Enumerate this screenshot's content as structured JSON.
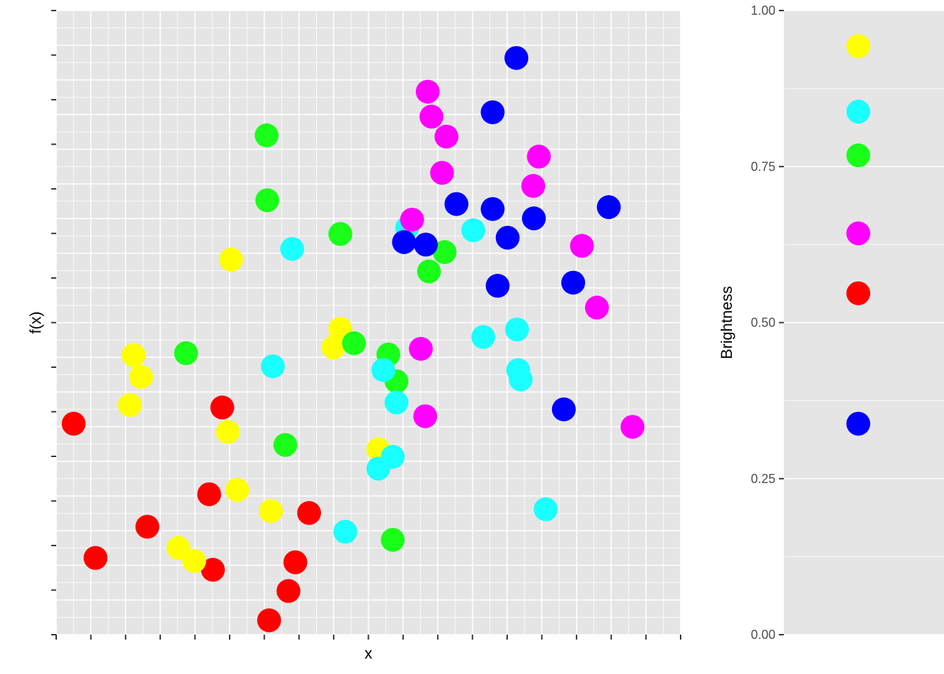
{
  "chart_data": {
    "type": "scatter",
    "xlabel": "x",
    "ylabel": "f(x)",
    "x_tick_labels_visible": false,
    "y_tick_labels_visible": false,
    "grid": true,
    "panel_background": "#e5e5e5",
    "grid_color": "#ffffff",
    "point_size": "large",
    "points": [
      {
        "x": 0.028,
        "y": 0.338,
        "color": "#ff0000"
      },
      {
        "x": 0.063,
        "y": 0.123,
        "color": "#ff0000"
      },
      {
        "x": 0.146,
        "y": 0.173,
        "color": "#ff0000"
      },
      {
        "x": 0.245,
        "y": 0.225,
        "color": "#ff0000"
      },
      {
        "x": 0.251,
        "y": 0.104,
        "color": "#ff0000"
      },
      {
        "x": 0.266,
        "y": 0.364,
        "color": "#ff0000"
      },
      {
        "x": 0.341,
        "y": 0.023,
        "color": "#ff0000"
      },
      {
        "x": 0.372,
        "y": 0.07,
        "color": "#ff0000"
      },
      {
        "x": 0.383,
        "y": 0.116,
        "color": "#ff0000"
      },
      {
        "x": 0.405,
        "y": 0.195,
        "color": "#ff0000"
      },
      {
        "x": 0.118,
        "y": 0.368,
        "color": "#ffff00"
      },
      {
        "x": 0.124,
        "y": 0.448,
        "color": "#ffff00"
      },
      {
        "x": 0.136,
        "y": 0.413,
        "color": "#ffff00"
      },
      {
        "x": 0.196,
        "y": 0.139,
        "color": "#ffff00"
      },
      {
        "x": 0.221,
        "y": 0.118,
        "color": "#ffff00"
      },
      {
        "x": 0.275,
        "y": 0.325,
        "color": "#ffff00"
      },
      {
        "x": 0.28,
        "y": 0.601,
        "color": "#ffff00"
      },
      {
        "x": 0.29,
        "y": 0.232,
        "color": "#ffff00"
      },
      {
        "x": 0.344,
        "y": 0.198,
        "color": "#ffff00"
      },
      {
        "x": 0.444,
        "y": 0.46,
        "color": "#ffff00"
      },
      {
        "x": 0.455,
        "y": 0.49,
        "color": "#ffff00"
      },
      {
        "x": 0.516,
        "y": 0.297,
        "color": "#ffff00"
      },
      {
        "x": 0.208,
        "y": 0.451,
        "color": "#1aff1a"
      },
      {
        "x": 0.337,
        "y": 0.8,
        "color": "#1aff1a"
      },
      {
        "x": 0.338,
        "y": 0.696,
        "color": "#1aff1a"
      },
      {
        "x": 0.367,
        "y": 0.304,
        "color": "#1aff1a"
      },
      {
        "x": 0.455,
        "y": 0.642,
        "color": "#1aff1a"
      },
      {
        "x": 0.477,
        "y": 0.467,
        "color": "#1aff1a"
      },
      {
        "x": 0.532,
        "y": 0.449,
        "color": "#1aff1a"
      },
      {
        "x": 0.545,
        "y": 0.406,
        "color": "#1aff1a"
      },
      {
        "x": 0.539,
        "y": 0.152,
        "color": "#1aff1a"
      },
      {
        "x": 0.597,
        "y": 0.582,
        "color": "#1aff1a"
      },
      {
        "x": 0.622,
        "y": 0.613,
        "color": "#1aff1a"
      },
      {
        "x": 0.347,
        "y": 0.43,
        "color": "#1affff"
      },
      {
        "x": 0.378,
        "y": 0.618,
        "color": "#1affff"
      },
      {
        "x": 0.463,
        "y": 0.165,
        "color": "#1affff"
      },
      {
        "x": 0.516,
        "y": 0.266,
        "color": "#1affff"
      },
      {
        "x": 0.524,
        "y": 0.424,
        "color": "#1affff"
      },
      {
        "x": 0.539,
        "y": 0.285,
        "color": "#1affff"
      },
      {
        "x": 0.545,
        "y": 0.372,
        "color": "#1affff"
      },
      {
        "x": 0.562,
        "y": 0.652,
        "color": "#1affff"
      },
      {
        "x": 0.668,
        "y": 0.648,
        "color": "#1affff"
      },
      {
        "x": 0.684,
        "y": 0.477,
        "color": "#1affff"
      },
      {
        "x": 0.738,
        "y": 0.489,
        "color": "#1affff"
      },
      {
        "x": 0.74,
        "y": 0.424,
        "color": "#1affff"
      },
      {
        "x": 0.744,
        "y": 0.409,
        "color": "#1affff"
      },
      {
        "x": 0.784,
        "y": 0.201,
        "color": "#1affff"
      },
      {
        "x": 0.57,
        "y": 0.665,
        "color": "#ff00ff"
      },
      {
        "x": 0.584,
        "y": 0.458,
        "color": "#ff00ff"
      },
      {
        "x": 0.591,
        "y": 0.35,
        "color": "#ff00ff"
      },
      {
        "x": 0.595,
        "y": 0.87,
        "color": "#ff00ff"
      },
      {
        "x": 0.601,
        "y": 0.83,
        "color": "#ff00ff"
      },
      {
        "x": 0.618,
        "y": 0.74,
        "color": "#ff00ff"
      },
      {
        "x": 0.625,
        "y": 0.798,
        "color": "#ff00ff"
      },
      {
        "x": 0.764,
        "y": 0.719,
        "color": "#ff00ff"
      },
      {
        "x": 0.773,
        "y": 0.766,
        "color": "#ff00ff"
      },
      {
        "x": 0.842,
        "y": 0.623,
        "color": "#ff00ff"
      },
      {
        "x": 0.866,
        "y": 0.524,
        "color": "#ff00ff"
      },
      {
        "x": 0.923,
        "y": 0.333,
        "color": "#ff00ff"
      },
      {
        "x": 0.557,
        "y": 0.629,
        "color": "#0000ff"
      },
      {
        "x": 0.592,
        "y": 0.625,
        "color": "#0000ff"
      },
      {
        "x": 0.641,
        "y": 0.69,
        "color": "#0000ff"
      },
      {
        "x": 0.699,
        "y": 0.837,
        "color": "#0000ff"
      },
      {
        "x": 0.699,
        "y": 0.682,
        "color": "#0000ff"
      },
      {
        "x": 0.707,
        "y": 0.559,
        "color": "#0000ff"
      },
      {
        "x": 0.723,
        "y": 0.636,
        "color": "#0000ff"
      },
      {
        "x": 0.737,
        "y": 0.924,
        "color": "#0000ff"
      },
      {
        "x": 0.765,
        "y": 0.667,
        "color": "#0000ff"
      },
      {
        "x": 0.813,
        "y": 0.361,
        "color": "#0000ff"
      },
      {
        "x": 0.828,
        "y": 0.564,
        "color": "#0000ff"
      },
      {
        "x": 0.885,
        "y": 0.685,
        "color": "#0000ff"
      }
    ],
    "legend": {
      "title": "Brightness",
      "placement": "right",
      "scale": {
        "min": 0,
        "max": 1,
        "ticks": [
          "0.00",
          "0.25",
          "0.50",
          "0.75",
          "1.00"
        ]
      },
      "entries": [
        {
          "value": 0.943,
          "color": "#ffff00"
        },
        {
          "value": 0.838,
          "color": "#1affff"
        },
        {
          "value": 0.768,
          "color": "#1aff1a"
        },
        {
          "value": 0.643,
          "color": "#ff00ff"
        },
        {
          "value": 0.547,
          "color": "#ff0000"
        },
        {
          "value": 0.338,
          "color": "#0000ff"
        }
      ]
    }
  }
}
